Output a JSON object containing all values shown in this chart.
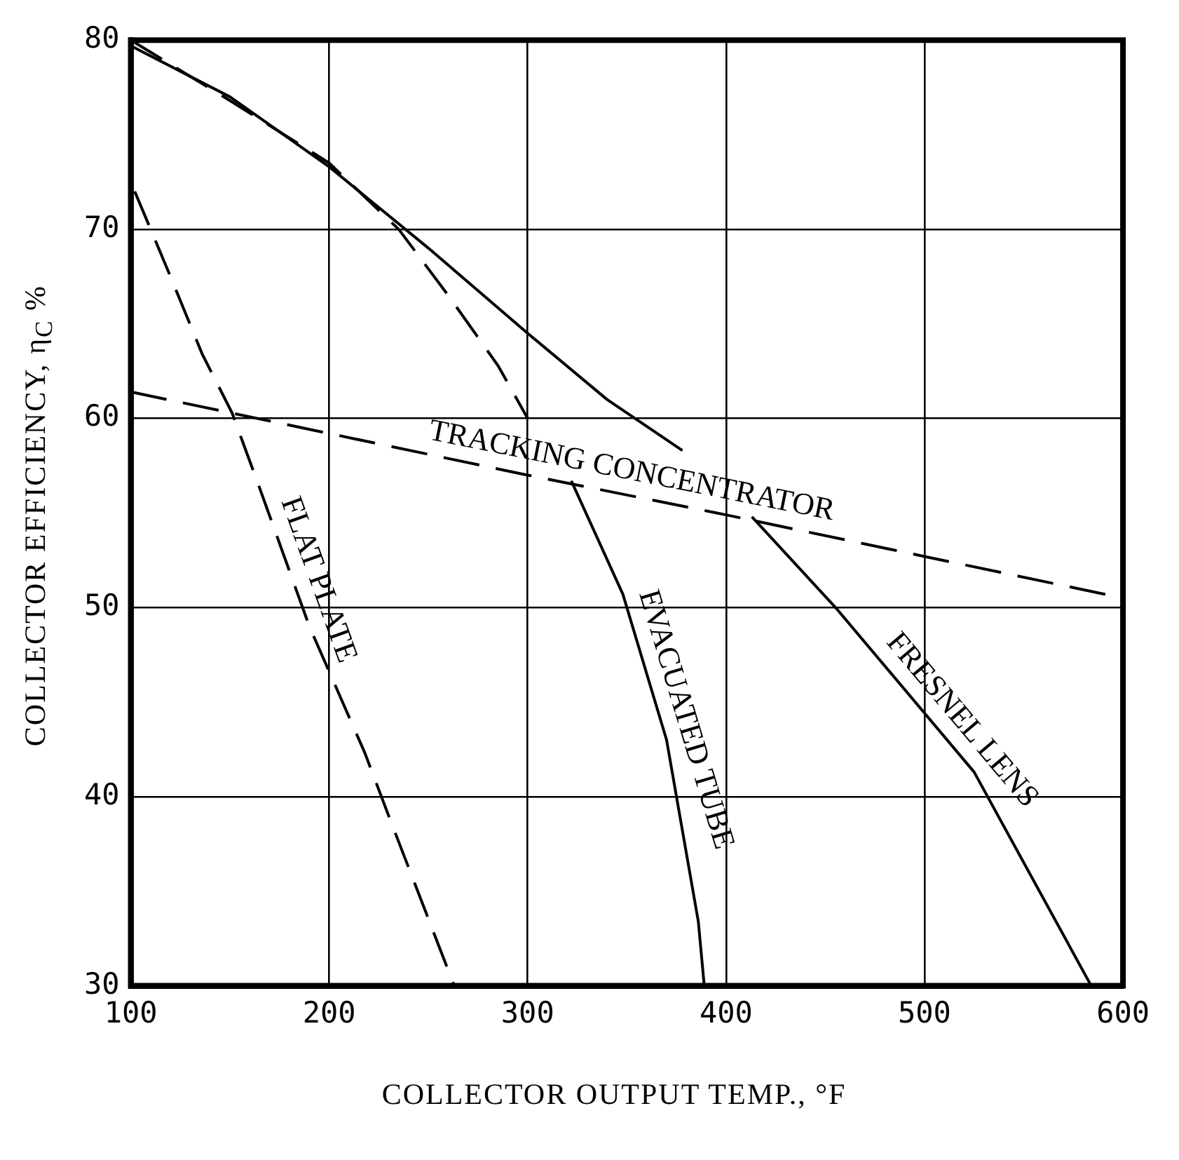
{
  "chart_data": {
    "type": "line",
    "xlabel": "COLLECTOR OUTPUT TEMP., °F",
    "ylabel": "COLLECTOR EFFICIENCY, η$_{C}$ %",
    "xlim": [
      100,
      600
    ],
    "xticks": [
      100,
      200,
      300,
      400,
      500,
      600
    ],
    "ylim": [
      30,
      80
    ],
    "yticks": [
      30,
      40,
      50,
      60,
      70,
      80
    ],
    "grid": true,
    "legend": false,
    "marker": "none",
    "series": [
      {
        "name": "FLAT PLATE",
        "color": "#000000",
        "line_style": "dashed",
        "x": [
          102,
          120,
          136,
          151,
          165,
          190,
          218,
          231,
          263
        ],
        "values": [
          72,
          67.5,
          63.4,
          60.3,
          56.3,
          49,
          42.3,
          38.7,
          30
        ]
      },
      {
        "color": "#000000",
        "line_style": "dashed",
        "x": [
          100,
          150,
          200,
          235,
          260,
          285,
          300
        ],
        "values": [
          80,
          76.8,
          73.5,
          70,
          66.5,
          62.8,
          60
        ]
      },
      {
        "name": "EVACUATED TUBE",
        "color": "#000000",
        "line_style": "solid",
        "x": [
          322,
          348,
          370,
          386,
          389
        ],
        "values": [
          56.7,
          50.7,
          43,
          33.4,
          30
        ]
      },
      {
        "color": "#000000",
        "line_style": "solid",
        "x": [
          100,
          150,
          200,
          250,
          300,
          340,
          378
        ],
        "values": [
          79.7,
          77,
          73.3,
          69,
          64.5,
          61,
          58.3
        ]
      },
      {
        "name": "FRESNEL LENS",
        "color": "#000000",
        "line_style": "solid",
        "x": [
          413,
          456,
          525,
          584
        ],
        "values": [
          54.8,
          49.9,
          41.3,
          30
        ]
      },
      {
        "name": "TRACKING CONCENTRATOR",
        "color": "#000000",
        "line_style": "dashed",
        "x": [
          100,
          200,
          300,
          400,
          500,
          600
        ],
        "values": [
          61.4,
          59.2,
          57,
          54.9,
          52.7,
          50.5
        ]
      }
    ]
  }
}
